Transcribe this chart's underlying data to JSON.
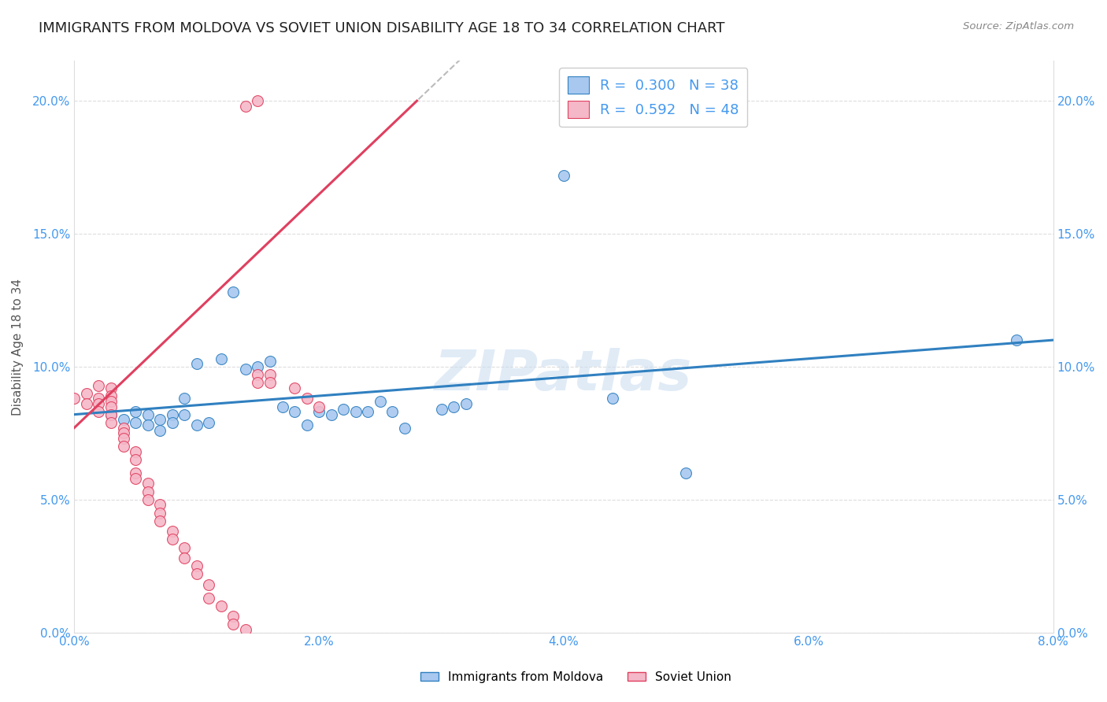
{
  "title": "IMMIGRANTS FROM MOLDOVA VS SOVIET UNION DISABILITY AGE 18 TO 34 CORRELATION CHART",
  "source": "Source: ZipAtlas.com",
  "xlim": [
    0.0,
    0.08
  ],
  "ylim": [
    0.0,
    0.215
  ],
  "ytick_vals": [
    0.0,
    0.05,
    0.1,
    0.15,
    0.2
  ],
  "xtick_vals": [
    0.0,
    0.02,
    0.04,
    0.06,
    0.08
  ],
  "xlabel_ticks": [
    "0.0%",
    "2.0%",
    "4.0%",
    "6.0%",
    "8.0%"
  ],
  "ylabel_ticks": [
    "0.0%",
    "5.0%",
    "10.0%",
    "15.0%",
    "20.0%"
  ],
  "legend_label_blue": "Immigrants from Moldova",
  "legend_label_pink": "Soviet Union",
  "legend_r_blue": "0.300",
  "legend_n_blue": "38",
  "legend_r_pink": "0.592",
  "legend_n_pink": "48",
  "ylabel": "Disability Age 18 to 34",
  "blue_scatter": [
    [
      0.003,
      0.082
    ],
    [
      0.004,
      0.08
    ],
    [
      0.005,
      0.083
    ],
    [
      0.005,
      0.079
    ],
    [
      0.006,
      0.082
    ],
    [
      0.006,
      0.078
    ],
    [
      0.007,
      0.08
    ],
    [
      0.007,
      0.076
    ],
    [
      0.008,
      0.082
    ],
    [
      0.008,
      0.079
    ],
    [
      0.009,
      0.088
    ],
    [
      0.009,
      0.082
    ],
    [
      0.01,
      0.101
    ],
    [
      0.01,
      0.078
    ],
    [
      0.011,
      0.079
    ],
    [
      0.012,
      0.103
    ],
    [
      0.013,
      0.128
    ],
    [
      0.014,
      0.099
    ],
    [
      0.015,
      0.1
    ],
    [
      0.016,
      0.102
    ],
    [
      0.017,
      0.085
    ],
    [
      0.018,
      0.083
    ],
    [
      0.019,
      0.078
    ],
    [
      0.02,
      0.083
    ],
    [
      0.021,
      0.082
    ],
    [
      0.022,
      0.084
    ],
    [
      0.023,
      0.083
    ],
    [
      0.024,
      0.083
    ],
    [
      0.025,
      0.087
    ],
    [
      0.026,
      0.083
    ],
    [
      0.027,
      0.077
    ],
    [
      0.03,
      0.084
    ],
    [
      0.031,
      0.085
    ],
    [
      0.032,
      0.086
    ],
    [
      0.04,
      0.172
    ],
    [
      0.044,
      0.088
    ],
    [
      0.05,
      0.06
    ],
    [
      0.077,
      0.11
    ]
  ],
  "pink_scatter": [
    [
      0.0,
      0.088
    ],
    [
      0.001,
      0.09
    ],
    [
      0.001,
      0.086
    ],
    [
      0.002,
      0.093
    ],
    [
      0.002,
      0.088
    ],
    [
      0.002,
      0.086
    ],
    [
      0.002,
      0.083
    ],
    [
      0.003,
      0.092
    ],
    [
      0.003,
      0.089
    ],
    [
      0.003,
      0.087
    ],
    [
      0.003,
      0.085
    ],
    [
      0.003,
      0.082
    ],
    [
      0.003,
      0.079
    ],
    [
      0.004,
      0.077
    ],
    [
      0.004,
      0.075
    ],
    [
      0.004,
      0.073
    ],
    [
      0.004,
      0.07
    ],
    [
      0.005,
      0.068
    ],
    [
      0.005,
      0.065
    ],
    [
      0.005,
      0.06
    ],
    [
      0.005,
      0.058
    ],
    [
      0.006,
      0.056
    ],
    [
      0.006,
      0.053
    ],
    [
      0.006,
      0.05
    ],
    [
      0.007,
      0.048
    ],
    [
      0.007,
      0.045
    ],
    [
      0.007,
      0.042
    ],
    [
      0.008,
      0.038
    ],
    [
      0.008,
      0.035
    ],
    [
      0.009,
      0.032
    ],
    [
      0.009,
      0.028
    ],
    [
      0.01,
      0.025
    ],
    [
      0.01,
      0.022
    ],
    [
      0.011,
      0.018
    ],
    [
      0.011,
      0.013
    ],
    [
      0.012,
      0.01
    ],
    [
      0.013,
      0.006
    ],
    [
      0.013,
      0.003
    ],
    [
      0.014,
      0.001
    ],
    [
      0.015,
      0.097
    ],
    [
      0.015,
      0.094
    ],
    [
      0.016,
      0.097
    ],
    [
      0.016,
      0.094
    ],
    [
      0.018,
      0.092
    ],
    [
      0.019,
      0.088
    ],
    [
      0.02,
      0.085
    ],
    [
      0.014,
      0.198
    ],
    [
      0.015,
      0.2
    ]
  ],
  "blue_color": "#A8C8F0",
  "pink_color": "#F5B8C8",
  "blue_line_color": "#3080C0",
  "pink_line_color": "#E04060",
  "gray_dash_color": "#BBBBBB",
  "grid_color": "#DDDDDD",
  "tick_color": "#4499EE",
  "background_color": "#FFFFFF",
  "title_fontsize": 13,
  "axis_fontsize": 11,
  "legend_fontsize": 13
}
